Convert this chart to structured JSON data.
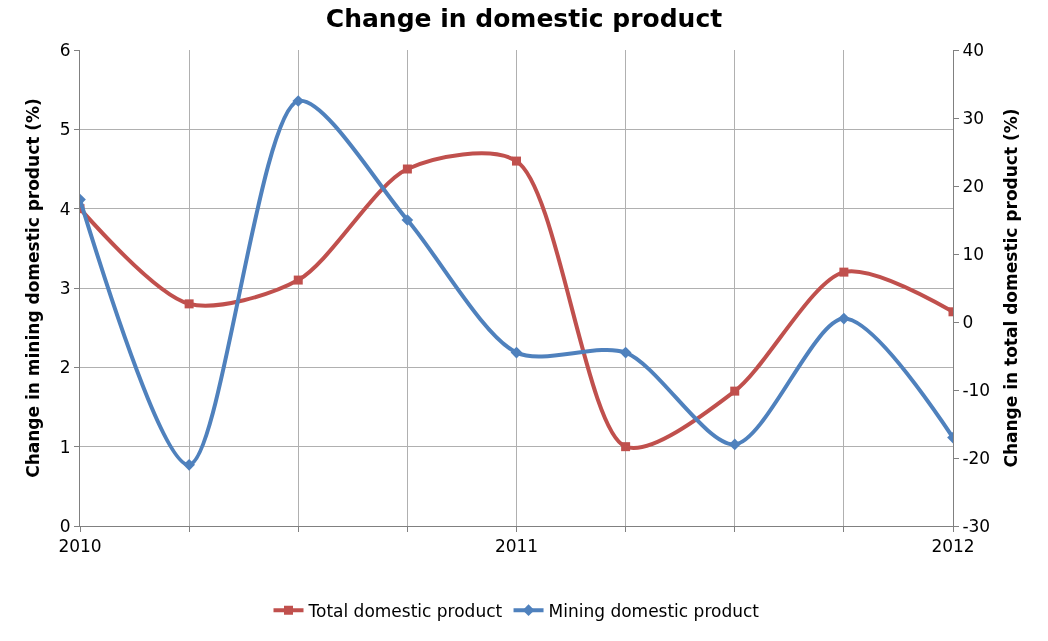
{
  "chart_data": {
    "type": "line",
    "title": "Change in domestic product",
    "ylabel": "Change in mining domestic product (%)",
    "y2label": "Change in total domestic product (%)",
    "x": [
      2010,
      2010.25,
      2010.5,
      2010.75,
      2011,
      2011.25,
      2011.5,
      2011.75,
      2012
    ],
    "series": [
      {
        "name": "Total domestic product",
        "color": "#c0504d",
        "marker": "square",
        "values": [
          4.0,
          2.8,
          3.1,
          4.5,
          4.6,
          1.0,
          1.7,
          3.2,
          2.7
        ]
      },
      {
        "name": "Mining domestic product",
        "color": "#4f81bd",
        "marker": "diamond",
        "axis": "y2",
        "values": [
          18,
          -21,
          32.5,
          15,
          -4.5,
          -4.5,
          -18,
          0.5,
          -17
        ]
      }
    ],
    "xlim": [
      2010,
      2012
    ],
    "xticks": [
      2010,
      {
        "value": 2010.25,
        "label": null
      },
      {
        "value": 2010.5,
        "label": null
      },
      {
        "value": 2010.75,
        "label": null
      },
      2011,
      {
        "value": 2011.25,
        "label": null
      },
      {
        "value": 2011.5,
        "label": null
      },
      {
        "value": 2011.75,
        "label": null
      },
      2012
    ],
    "ylim": [
      0,
      6
    ],
    "yticks": [
      0,
      1,
      2,
      3,
      4,
      5,
      6
    ],
    "y2lim": [
      -30,
      40
    ],
    "y2ticks": [
      -30,
      -20,
      -10,
      0,
      10,
      20,
      30,
      40
    ],
    "grid": true,
    "legend": "bottom",
    "line_style": "solid"
  }
}
